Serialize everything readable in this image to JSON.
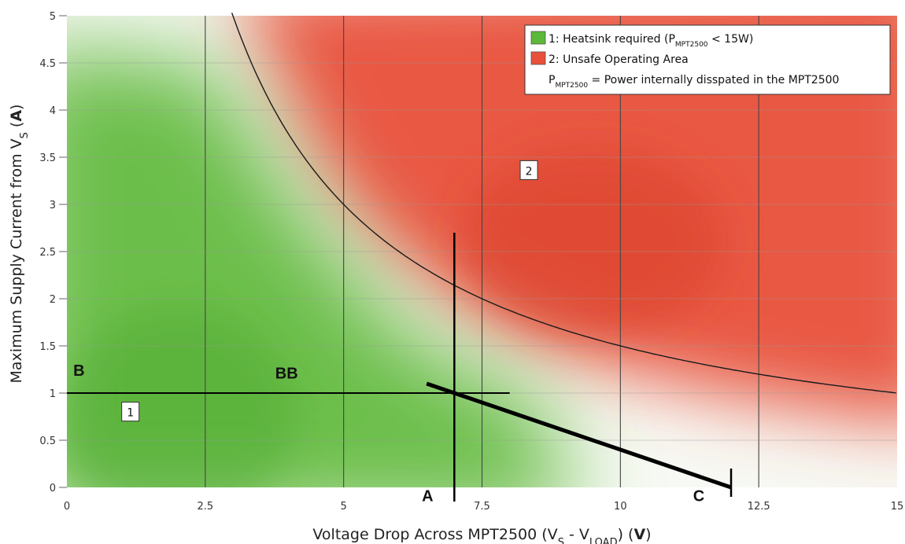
{
  "chart_data": {
    "type": "line",
    "x_axis": {
      "label_parts": [
        "Voltage Drop Across MPT2500 (V",
        "S",
        " - V",
        "LOAD",
        ") (",
        "V",
        ")"
      ],
      "range": [
        0,
        15
      ],
      "ticks": [
        0,
        2.5,
        5,
        7.5,
        10,
        12.5,
        15
      ],
      "tick_labels": [
        "0",
        "2.5",
        "5",
        "7.5",
        "10",
        "12.5",
        "15"
      ]
    },
    "y_axis": {
      "label_parts": [
        "Maximum Supply Current from V",
        "S",
        " (",
        "A",
        ")"
      ],
      "range": [
        0,
        5
      ],
      "ticks": [
        0,
        0.5,
        1,
        1.5,
        2,
        2.5,
        3,
        3.5,
        4,
        4.5,
        5
      ],
      "tick_labels": [
        "0",
        "0.5",
        "1",
        "1.5",
        "2",
        "2.5",
        "3",
        "3.5",
        "4",
        "4.5",
        "5"
      ]
    },
    "grid": {
      "vertical": true,
      "horizontal": true
    },
    "regions": [
      {
        "id": "1",
        "label": "1",
        "color": "#5cb839",
        "center": [
          2,
          0.75
        ]
      },
      {
        "id": "2",
        "label": "2",
        "color": "#e8503a",
        "center": [
          9.5,
          2.6
        ]
      }
    ],
    "series": [
      {
        "kind": "boundary-curve",
        "equation": "y = 15 / x",
        "x": [
          3,
          3.5,
          4,
          4.5,
          5,
          5.5,
          6,
          6.5,
          7,
          7.5,
          8,
          8.5,
          9,
          9.5,
          10,
          10.5,
          11,
          11.5,
          12,
          12.5,
          13,
          13.5,
          14,
          14.5,
          15
        ],
        "y": [
          5,
          4.29,
          3.75,
          3.33,
          3,
          2.73,
          2.5,
          2.31,
          2.14,
          2,
          1.88,
          1.76,
          1.67,
          1.58,
          1.5,
          1.43,
          1.36,
          1.3,
          1.25,
          1.2,
          1.15,
          1.11,
          1.07,
          1.03,
          1
        ]
      },
      {
        "kind": "load-line",
        "x": [
          6.5,
          12
        ],
        "y": [
          1.1,
          0
        ]
      }
    ],
    "annotations": [
      {
        "type": "hline",
        "y": 1,
        "x_range": [
          0,
          8
        ]
      },
      {
        "type": "vline",
        "x": 7,
        "y_range": [
          -0.15,
          2.7
        ]
      },
      {
        "type": "vline",
        "x": 12,
        "y_range": [
          -0.1,
          0.2
        ]
      }
    ],
    "markers": [
      {
        "text": "B",
        "x": 0.2,
        "y": 1.25
      },
      {
        "text": "BB",
        "x": 3.85,
        "y": 1.22
      },
      {
        "text": "A",
        "x": 6.5,
        "y": -0.08
      },
      {
        "text": "C",
        "x": 11.4,
        "y": -0.08
      }
    ],
    "legend": {
      "position": "top-right",
      "entries": [
        {
          "color": "#5cb839",
          "parts": [
            "1:  Heatsink required (P",
            "MPT2500",
            " < 15W)"
          ]
        },
        {
          "color": "#e8503a",
          "parts": [
            "2:  Unsafe Operating Area"
          ]
        },
        {
          "color": null,
          "parts": [
            "P",
            "MPT2500",
            " = Power internally disspated in the MPT2500"
          ]
        }
      ]
    }
  }
}
